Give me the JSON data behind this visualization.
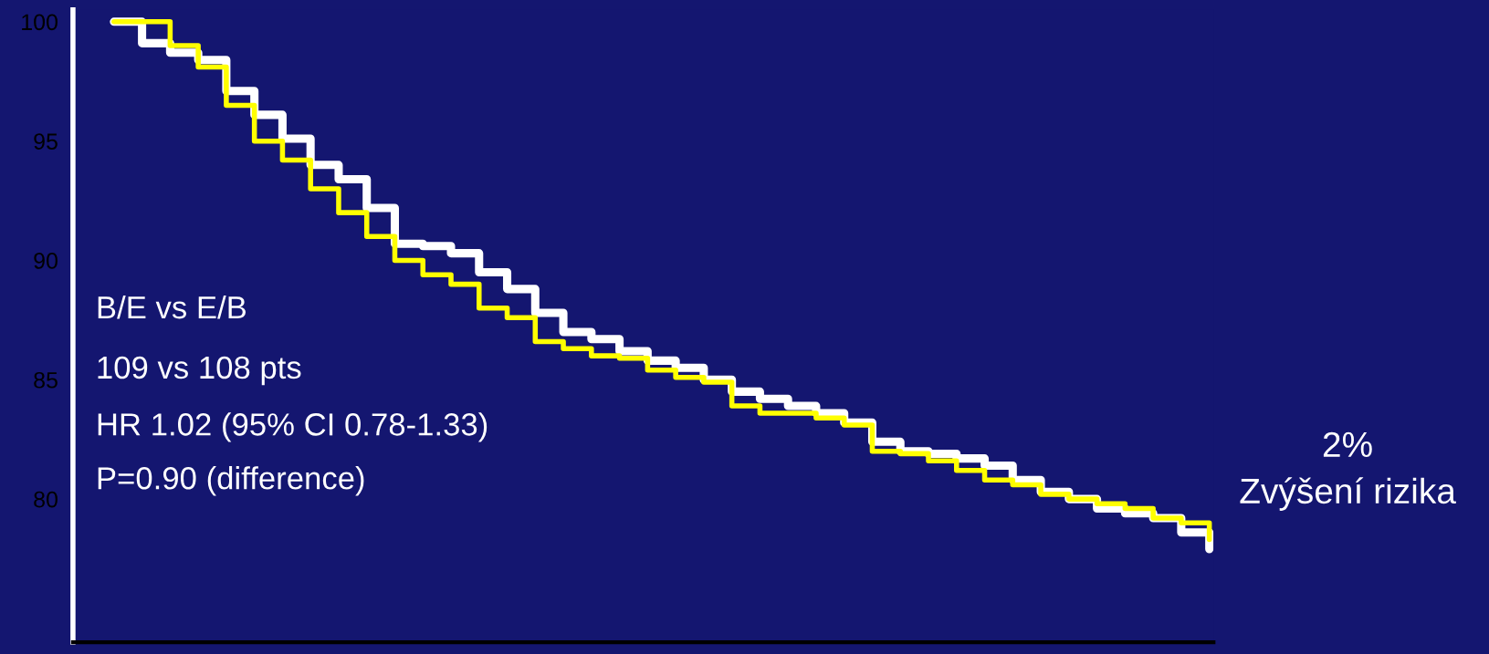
{
  "chart_data": {
    "type": "step",
    "categories": [
      null,
      null,
      null,
      null,
      null,
      null,
      null,
      null,
      null,
      null,
      null,
      null,
      null,
      null,
      null,
      null,
      null,
      null,
      null,
      null,
      null,
      null,
      null,
      null,
      null,
      null,
      null,
      null,
      null,
      null,
      null,
      null,
      null,
      null,
      null,
      null,
      null,
      null,
      null,
      null
    ],
    "series": [
      {
        "color": "#ffffff",
        "values": [
          100,
          99.1,
          98.7,
          98.4,
          97.1,
          96.1,
          95.1,
          94.0,
          93.4,
          92.2,
          90.7,
          90.6,
          90.3,
          89.5,
          88.8,
          87.8,
          87.0,
          86.7,
          86.2,
          85.8,
          85.5,
          85.0,
          84.5,
          84.2,
          83.9,
          83.6,
          83.2,
          82.4,
          82.0,
          81.9,
          81.7,
          81.4,
          80.8,
          80.3,
          80.0,
          79.6,
          79.4,
          79.2,
          78.6,
          77.9
        ]
      },
      {
        "color": "#ffff00",
        "values": [
          100,
          100,
          99.0,
          98.1,
          96.5,
          95.0,
          94.2,
          93.0,
          92.0,
          91.0,
          90.0,
          89.4,
          89.0,
          88.0,
          87.6,
          86.6,
          86.3,
          86.0,
          85.9,
          85.4,
          85.1,
          84.9,
          83.9,
          83.6,
          83.6,
          83.4,
          83.1,
          82.0,
          81.9,
          81.6,
          81.2,
          80.8,
          80.6,
          80.2,
          80.0,
          79.8,
          79.6,
          79.2,
          79.0,
          78.3
        ]
      }
    ],
    "ylim": [
      74,
      100.5
    ],
    "yticks": [
      80,
      85,
      90,
      95,
      100
    ],
    "line_style": "solid",
    "grid": false,
    "legend": false,
    "annotations": [
      "B/E vs E/B",
      "109 vs 108 pts",
      "HR 1.02 (95% CI 0.78-1.33)",
      "P=0.90 (difference)",
      "2%\nZvýšení rizika"
    ]
  }
}
